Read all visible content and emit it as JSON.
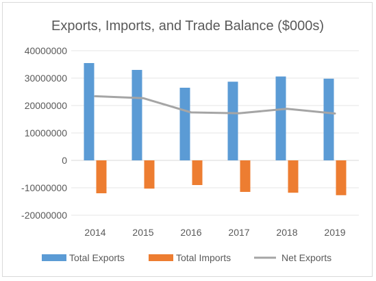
{
  "chart_data": {
    "type": "bar",
    "title": "Exports, Imports, and Trade Balance ($000s)",
    "categories": [
      "2014",
      "2015",
      "2016",
      "2017",
      "2018",
      "2019"
    ],
    "ylim": [
      -20000000,
      40000000
    ],
    "yticks": [
      "40000000",
      "30000000",
      "20000000",
      "10000000",
      "0",
      "-10000000",
      "-20000000"
    ],
    "ytick_values": [
      40000000,
      30000000,
      20000000,
      10000000,
      0,
      -10000000,
      -20000000
    ],
    "grid": true,
    "legend_position": "bottom",
    "series": [
      {
        "name": "Total Exports",
        "type": "bar",
        "color": "#5b9bd5",
        "values": [
          35500000,
          33000000,
          26500000,
          28700000,
          30600000,
          29800000
        ]
      },
      {
        "name": "Total Imports",
        "type": "bar",
        "color": "#ed7d31",
        "values": [
          -12000000,
          -10300000,
          -9000000,
          -11500000,
          -11800000,
          -12700000
        ]
      },
      {
        "name": "Net Exports",
        "type": "line",
        "color": "#a5a5a5",
        "values": [
          23400000,
          22700000,
          17500000,
          17200000,
          18800000,
          17100000
        ]
      }
    ]
  }
}
